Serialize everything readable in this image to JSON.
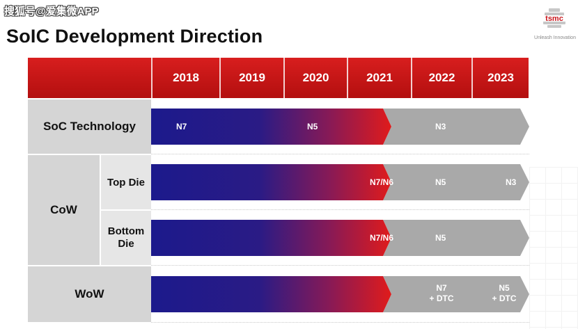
{
  "watermark": "搜狐号@爱集微APP",
  "title": "SoIC Development Direction",
  "logo": {
    "text": "tsmc",
    "tagline": "Unleash Innovation"
  },
  "years": [
    "2018",
    "2019",
    "2020",
    "2021",
    "2022",
    "2023"
  ],
  "rows": {
    "soc": {
      "label": "SoC Technology",
      "nodes": [
        "N7",
        "N5",
        "N3"
      ]
    },
    "cow": {
      "label": "CoW",
      "top": {
        "label": "Top Die",
        "nodes": [
          "N7/N6",
          "N5",
          "N3"
        ]
      },
      "bottom": {
        "label": "Bottom Die",
        "nodes": [
          "N7/N6",
          "N5"
        ]
      }
    },
    "wow": {
      "label": "WoW",
      "nodes": [
        {
          "l1": "N7",
          "l2": "+ DTC"
        },
        {
          "l1": "N5",
          "l2": "+ DTC"
        }
      ]
    }
  },
  "colors": {
    "header_red": "#c8151b",
    "blue": "#1c1a8c",
    "red": "#e01b1b",
    "grey": "#a9a9a9",
    "label_bg": "#d5d5d5"
  }
}
